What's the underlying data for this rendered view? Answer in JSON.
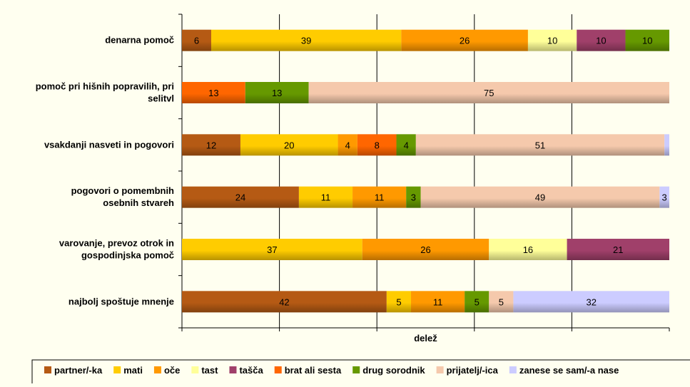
{
  "chart_data": {
    "type": "bar",
    "stacked": true,
    "orientation": "horizontal",
    "xlabel": "delež",
    "xlim": [
      0,
      100
    ],
    "grid": true,
    "legend_position": "bottom",
    "categories": [
      [
        "denarna pomoč"
      ],
      [
        "pomoč pri hišnih popravilih, pri",
        "selitvl"
      ],
      [
        "vsakdanji nasveti in pogovori"
      ],
      [
        "pogovori o pomembnih",
        "osebnih stvareh"
      ],
      [
        "varovanje, prevoz otrok in",
        "gospodinjska pomoč"
      ],
      [
        "najbolj spoštuje mnenje"
      ]
    ],
    "series": [
      {
        "name": "partner/-ka",
        "color": "#b55a14",
        "values": [
          6,
          0,
          12,
          24,
          0,
          42
        ]
      },
      {
        "name": "mati",
        "color": "#ffcc00",
        "values": [
          39,
          0,
          20,
          11,
          37,
          5
        ]
      },
      {
        "name": "oče",
        "color": "#ff9900",
        "values": [
          26,
          0,
          4,
          11,
          26,
          11
        ]
      },
      {
        "name": "tast",
        "color": "#ffff99",
        "values": [
          10,
          0,
          0,
          0,
          16,
          0
        ]
      },
      {
        "name": "tašča",
        "color": "#a0406a",
        "values": [
          10,
          0,
          0,
          0,
          21,
          0
        ]
      },
      {
        "name": "brat ali sesta",
        "color": "#ff6600",
        "values": [
          0,
          13,
          8,
          0,
          0,
          0
        ]
      },
      {
        "name": "drug sorodnik",
        "color": "#669900",
        "values": [
          10,
          13,
          4,
          3,
          0,
          5
        ]
      },
      {
        "name": "prijatelj/-ica",
        "color": "#f5c9ac",
        "values": [
          0,
          75,
          51,
          49,
          0,
          5
        ]
      },
      {
        "name": "zanese se sam/-a nase",
        "color": "#ccccff",
        "values": [
          1,
          1,
          1,
          3,
          1,
          32
        ]
      }
    ],
    "data_labels": [
      [
        "6",
        "39",
        "26",
        "10",
        "10",
        "",
        "10",
        "",
        ""
      ],
      [
        "",
        "",
        "",
        "",
        "",
        "13",
        "13",
        "75",
        ""
      ],
      [
        "12",
        "20",
        "4",
        "",
        "",
        "8",
        "4",
        "51",
        ""
      ],
      [
        "24",
        "11",
        "11",
        "",
        "",
        "",
        "3",
        "49",
        "3"
      ],
      [
        "",
        "37",
        "26",
        "16",
        "21",
        "",
        "",
        "",
        ""
      ],
      [
        "42",
        "5",
        "11",
        "",
        "",
        "",
        "5",
        "5",
        "32"
      ]
    ]
  }
}
